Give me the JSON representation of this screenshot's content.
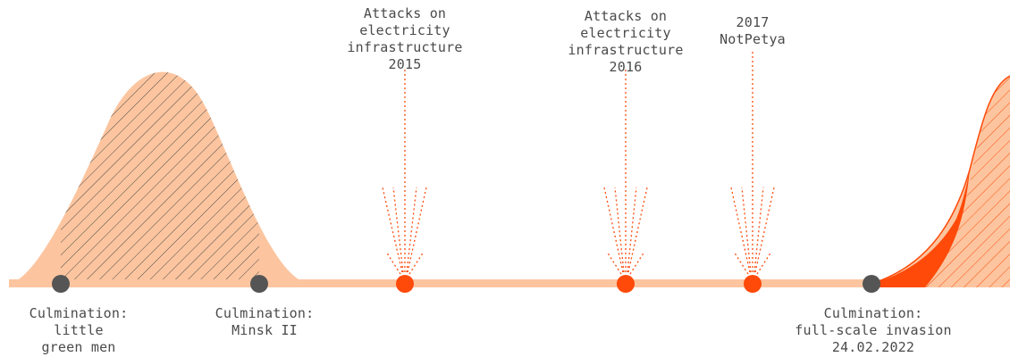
{
  "colors": {
    "wave_fill": "#fcc59f",
    "accent": "#ff4a0a",
    "culmination_dot": "#555555",
    "text": "#4a4a4a",
    "hatch": "#4a4a4a"
  },
  "events": [
    {
      "kind": "culmination",
      "label": "Culmination:\nlittle\ngreen men"
    },
    {
      "kind": "culmination",
      "label": "Culmination:\nMinsk II"
    },
    {
      "kind": "attack",
      "label": "Attacks on\nelectricity\ninfrastructure\n2015"
    },
    {
      "kind": "attack",
      "label": "Attacks on\nelectricity\ninfrastructure\n2016"
    },
    {
      "kind": "attack",
      "label": "2017\nNotPetya"
    },
    {
      "kind": "culmination",
      "label": "Culmination:\nfull-scale invasion\n24.02.2022"
    }
  ]
}
